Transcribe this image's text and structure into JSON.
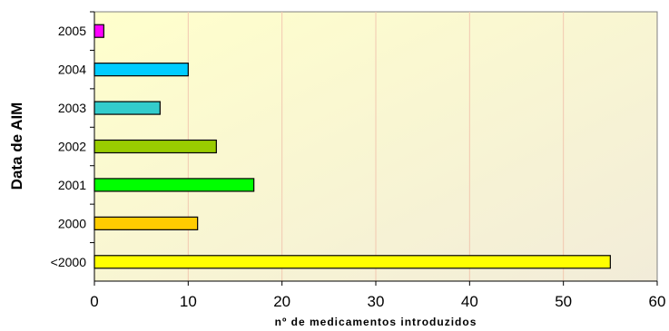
{
  "chart_data": {
    "type": "bar",
    "orientation": "horizontal",
    "categories": [
      "2005",
      "2004",
      "2003",
      "2002",
      "2001",
      "2000",
      "<2000"
    ],
    "values": [
      1,
      10,
      7,
      13,
      17,
      11,
      55
    ],
    "colors": [
      "#ff00ff",
      "#00ccff",
      "#33cccc",
      "#99cc00",
      "#00ff00",
      "#ffcc00",
      "#ffff00"
    ],
    "xlabel": "nº de medicamentos introduzidos",
    "ylabel": "Data de AIM",
    "xlim": [
      0,
      60
    ],
    "xticks": [
      "0",
      "10",
      "20",
      "30",
      "40",
      "50",
      "60"
    ],
    "grid": "vertical",
    "plot_background": [
      "#ffffcc",
      "#f2ecd9"
    ],
    "gridline_color": "#f2c8b0"
  }
}
